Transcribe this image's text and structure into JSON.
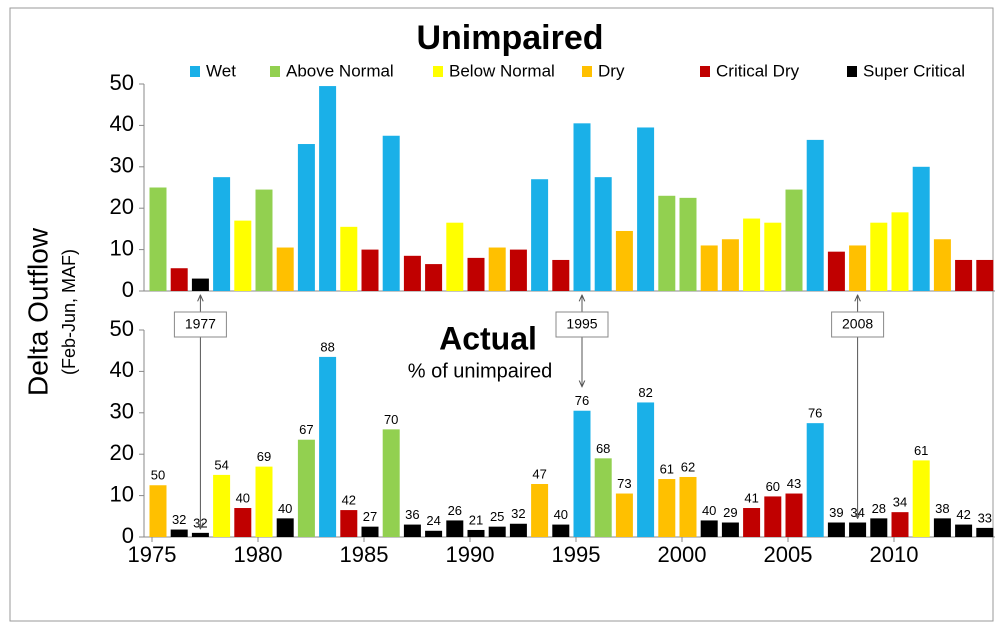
{
  "chart_data": [
    {
      "type": "bar",
      "title": "Unimpaired",
      "ylabel": "Delta Outflow",
      "ylabel_sub": "(Feb-Jun, MAF)",
      "legend": [
        {
          "name": "Wet",
          "color": "#1ab0e8"
        },
        {
          "name": "Above Normal",
          "color": "#92d050"
        },
        {
          "name": "Below Normal",
          "color": "#ffff00"
        },
        {
          "name": "Dry",
          "color": "#ffc000"
        },
        {
          "name": "Critical Dry",
          "color": "#c00000"
        },
        {
          "name": "Super Critical",
          "color": "#000000"
        }
      ],
      "categories": [
        1975,
        1976,
        1977,
        1978,
        1979,
        1980,
        1981,
        1982,
        1983,
        1984,
        1985,
        1986,
        1987,
        1988,
        1989,
        1990,
        1991,
        1992,
        1993,
        1994,
        1995,
        1996,
        1997,
        1998,
        1999,
        2000,
        2001,
        2002,
        2003,
        2004,
        2005,
        2006,
        2007,
        2008,
        2009,
        2010,
        2011,
        2012,
        2013,
        2014
      ],
      "values": [
        25,
        5.5,
        3,
        27.5,
        17,
        24.5,
        10.5,
        35.5,
        49.5,
        15.5,
        10,
        37.5,
        8.5,
        6.5,
        16.5,
        8,
        10.5,
        10,
        27,
        7.5,
        40.5,
        27.5,
        14.5,
        39.5,
        23,
        22.5,
        11,
        12.5,
        17.5,
        16.5,
        24.5,
        36.5,
        9.5,
        11,
        16.5,
        19,
        30,
        12.5,
        7.5,
        7.5
      ],
      "type_index": [
        1,
        4,
        5,
        0,
        2,
        1,
        3,
        0,
        0,
        2,
        4,
        0,
        4,
        4,
        2,
        4,
        3,
        4,
        0,
        4,
        0,
        0,
        3,
        0,
        1,
        1,
        3,
        3,
        2,
        2,
        1,
        0,
        4,
        3,
        2,
        2,
        0,
        3,
        4,
        4
      ],
      "ylim": [
        0,
        50
      ],
      "yticks": [
        0,
        10,
        20,
        30,
        40,
        50
      ],
      "annotations": [
        {
          "text": "1977",
          "x": 1977
        },
        {
          "text": "1995",
          "x": 1995
        },
        {
          "text": "2008",
          "x": 2008
        }
      ]
    },
    {
      "type": "bar",
      "title": "Actual",
      "subtitle": "% of unimpaired",
      "values": [
        12.5,
        1.8,
        1,
        15,
        7,
        17,
        4.5,
        23.5,
        43.5,
        6.5,
        2.5,
        26,
        3,
        1.5,
        4,
        1.7,
        2.5,
        3.2,
        12.8,
        3,
        30.5,
        19,
        10.5,
        32.5,
        14,
        14.5,
        4,
        3.5,
        7,
        9.8,
        10.5,
        27.5,
        3.5,
        3.5,
        4.5,
        6,
        18.5,
        4.5,
        3,
        2.2
      ],
      "type_index": [
        3,
        5,
        5,
        2,
        4,
        2,
        5,
        1,
        0,
        4,
        5,
        1,
        5,
        5,
        5,
        5,
        5,
        5,
        3,
        5,
        0,
        1,
        3,
        0,
        3,
        3,
        5,
        5,
        4,
        4,
        4,
        0,
        5,
        5,
        5,
        4,
        2,
        5,
        5,
        5
      ],
      "percent_labels": [
        50,
        32,
        32,
        54,
        40,
        69,
        40,
        67,
        88,
        42,
        27,
        70,
        36,
        24,
        26,
        21,
        25,
        32,
        47,
        40,
        76,
        68,
        73,
        82,
        61,
        62,
        40,
        29,
        41,
        60,
        43,
        76,
        39,
        34,
        28,
        34,
        61,
        38,
        42,
        33
      ],
      "ylim": [
        0,
        50
      ],
      "yticks": [
        0,
        10,
        20,
        30,
        40,
        50
      ],
      "xticks": [
        1975,
        1980,
        1985,
        1990,
        1995,
        2000,
        2005,
        2010
      ]
    }
  ]
}
